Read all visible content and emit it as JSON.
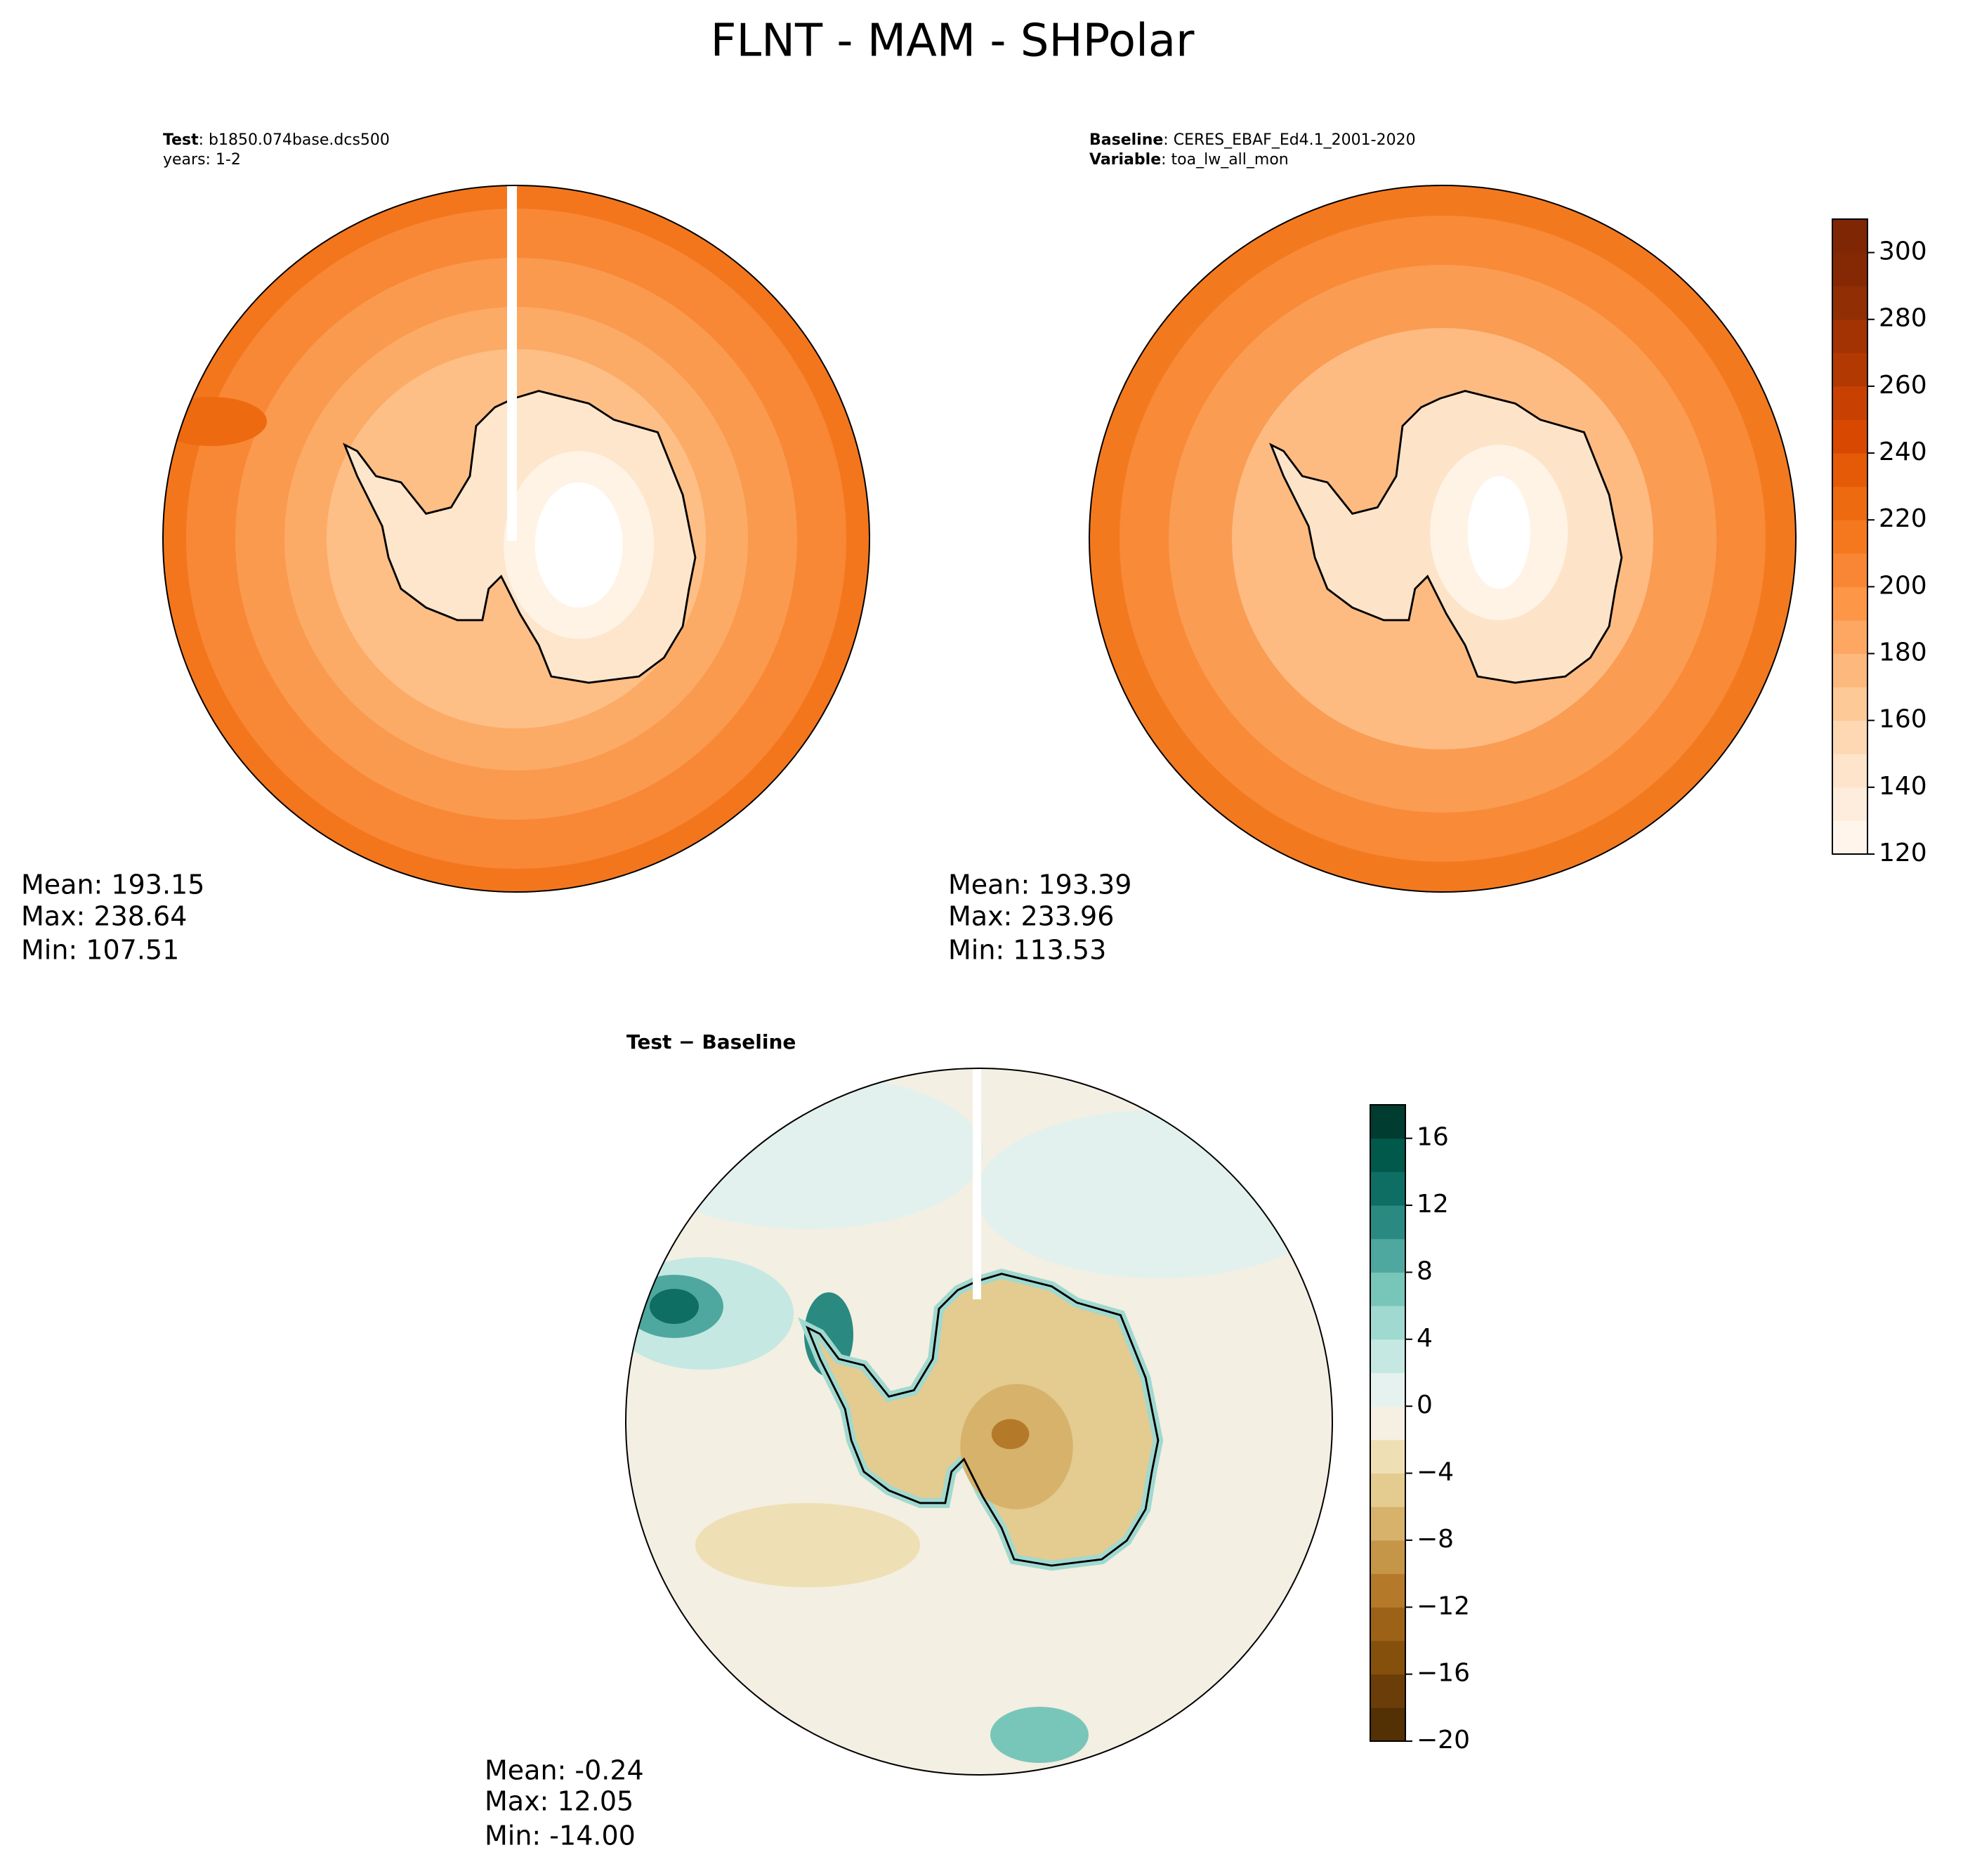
{
  "title": "FLNT - MAM - SHPolar",
  "panels": [
    {
      "header": [
        {
          "key": "Test",
          "text": ": b1850.074base.dcs500"
        },
        {
          "text": "years: 1-2"
        }
      ],
      "stats": [
        "Mean: 193.15",
        "Max: 238.64",
        "Min: 107.51"
      ]
    },
    {
      "header": [
        {
          "key": "Baseline",
          "text": ": CERES_EBAF_Ed4.1_2001-2020"
        },
        {
          "key": "Variable",
          "text": ": toa_lw_all_mon"
        }
      ],
      "stats": [
        "Mean: 193.39",
        "Max: 233.96",
        "Min: 113.53"
      ]
    },
    {
      "header": [
        {
          "key": "Test − Baseline"
        }
      ],
      "stats": [
        "Mean: -0.24",
        "Max: 12.05",
        "Min: -14.00"
      ]
    }
  ],
  "colorbars": [
    {
      "ylim": [
        120,
        310
      ],
      "yticks": [
        120,
        140,
        160,
        180,
        200,
        220,
        240,
        260,
        280,
        300
      ],
      "levels": [
        120,
        130,
        140,
        150,
        160,
        170,
        180,
        190,
        200,
        210,
        220,
        230,
        240,
        250,
        260,
        270,
        280,
        290,
        300,
        310
      ],
      "colors": [
        "#fff5eb",
        "#feeddc",
        "#fee4ca",
        "#fdd8b3",
        "#fdc997",
        "#fdb97d",
        "#fda762",
        "#fd9647",
        "#f98634",
        "#f5781f",
        "#ee6a11",
        "#e45a06",
        "#d84801",
        "#c84102",
        "#b33903",
        "#a33303",
        "#912e04",
        "#852904",
        "#7f2704"
      ]
    },
    {
      "ylim": [
        -20,
        18
      ],
      "yticks": [
        {
          "value": -20,
          "label": "−20"
        },
        {
          "value": -16,
          "label": "−16"
        },
        {
          "value": -12,
          "label": "−12"
        },
        {
          "value": -8,
          "label": "−8"
        },
        {
          "value": -4,
          "label": "−4"
        },
        0,
        4,
        8,
        12,
        16
      ],
      "levels": [
        -20,
        -18,
        -16,
        -14,
        -12,
        -10,
        -8,
        -6,
        -4,
        -2,
        0,
        2,
        4,
        6,
        8,
        10,
        12,
        14,
        16,
        18
      ],
      "colors": [
        "#543005",
        "#6b3d08",
        "#84500b",
        "#9c6318",
        "#b47a29",
        "#c59647",
        "#d6b26b",
        "#e4cb8f",
        "#efdfb5",
        "#f5f0e1",
        "#e6f2ef",
        "#c5e8e3",
        "#a0d9d0",
        "#78c6b9",
        "#4ea89f",
        "#2a8a82",
        "#0f6e64",
        "#01594b",
        "#003c30"
      ]
    }
  ]
}
